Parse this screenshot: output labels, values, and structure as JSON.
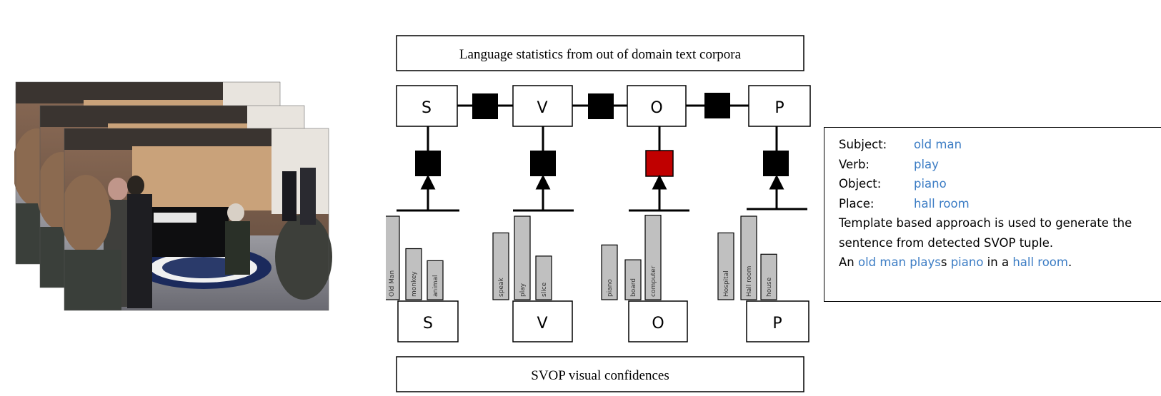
{
  "language_box": {
    "text": "Language statistics from out of domain text corpora"
  },
  "visual_box": {
    "text": "SVOP visual confidences"
  },
  "nodes": [
    "S",
    "V",
    "O",
    "P"
  ],
  "bottom_nodes": [
    "S",
    "V",
    "O",
    "P"
  ],
  "chart_data": [
    {
      "type": "bar",
      "categories": [
        "Old Man",
        "monkey",
        "animal"
      ],
      "values": [
        0.9,
        0.55,
        0.42
      ]
    },
    {
      "type": "bar",
      "categories": [
        "speak",
        "play",
        "slice"
      ],
      "values": [
        0.72,
        0.9,
        0.47
      ]
    },
    {
      "type": "bar",
      "categories": [
        "piano",
        "board",
        "computer"
      ],
      "values": [
        0.59,
        0.43,
        0.91
      ]
    },
    {
      "type": "bar",
      "categories": [
        "Hospital",
        "Hall room",
        "house"
      ],
      "values": [
        0.72,
        0.9,
        0.49
      ]
    }
  ],
  "colors": {
    "factor": "#000000",
    "highlight_factor": "#c00000",
    "bar_fill": "#c0c0c0",
    "link_text": "#3b7cc4"
  },
  "result_panel": {
    "subject_key": "Subject:",
    "subject_val": "old man",
    "verb_key": "Verb:",
    "verb_val": "play",
    "object_key": "Object:",
    "object_val": "piano",
    "place_key": "Place:",
    "place_val": "hall room",
    "template_text": "Template based approach is used to generate the sentence from detected SVOP tuple.",
    "sentence": {
      "w1": "An ",
      "w2": "old man plays",
      "w3": "s",
      "w4": " ",
      "w5": "piano",
      "w6": " in a ",
      "w7": "hall room",
      "w8": "."
    }
  }
}
